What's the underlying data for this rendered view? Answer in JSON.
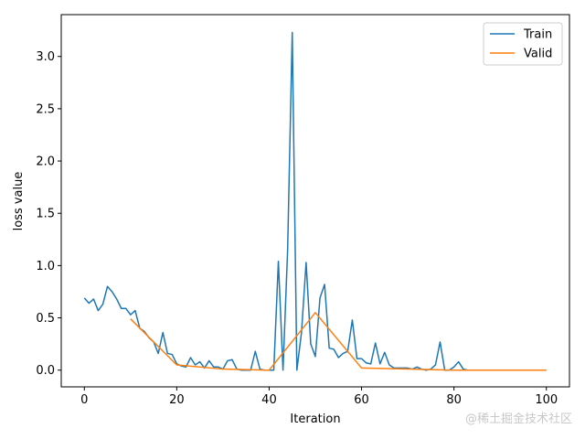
{
  "chart_data": {
    "type": "line",
    "title": "",
    "xlabel": "Iteration",
    "ylabel": "loss value",
    "xlim": [
      -5,
      105
    ],
    "ylim": [
      -0.16,
      3.4
    ],
    "xticks": [
      0,
      20,
      40,
      60,
      80,
      100
    ],
    "yticks": [
      0.0,
      0.5,
      1.0,
      1.5,
      2.0,
      2.5,
      3.0
    ],
    "grid": false,
    "legend_position": "top-right",
    "series": [
      {
        "name": "Train",
        "color": "#1f77b4",
        "x": [
          0,
          1,
          2,
          3,
          4,
          5,
          6,
          7,
          8,
          9,
          10,
          11,
          12,
          13,
          14,
          15,
          16,
          17,
          18,
          19,
          20,
          21,
          22,
          23,
          24,
          25,
          26,
          27,
          28,
          29,
          30,
          31,
          32,
          33,
          34,
          35,
          36,
          37,
          38,
          39,
          40,
          41,
          42,
          43,
          44,
          45,
          46,
          47,
          48,
          49,
          50,
          51,
          52,
          53,
          54,
          55,
          56,
          57,
          58,
          59,
          60,
          61,
          62,
          63,
          64,
          65,
          66,
          67,
          68,
          69,
          70,
          71,
          72,
          73,
          74,
          75,
          76,
          77,
          78,
          79,
          80,
          81,
          82,
          83,
          84,
          85,
          86,
          87,
          88,
          89,
          90,
          91,
          92,
          93,
          94,
          95,
          96,
          97,
          98,
          99,
          100
        ],
        "y": [
          0.69,
          0.64,
          0.68,
          0.57,
          0.63,
          0.8,
          0.75,
          0.68,
          0.59,
          0.59,
          0.53,
          0.57,
          0.4,
          0.37,
          0.31,
          0.27,
          0.16,
          0.36,
          0.16,
          0.15,
          0.06,
          0.04,
          0.03,
          0.12,
          0.05,
          0.08,
          0.02,
          0.09,
          0.03,
          0.03,
          0.01,
          0.09,
          0.1,
          0.01,
          0.0,
          0.0,
          0.0,
          0.18,
          0.01,
          0.0,
          0.0,
          0.0,
          1.04,
          0.0,
          1.15,
          3.23,
          0.0,
          0.36,
          1.03,
          0.25,
          0.13,
          0.69,
          0.82,
          0.21,
          0.2,
          0.12,
          0.16,
          0.18,
          0.48,
          0.11,
          0.11,
          0.07,
          0.06,
          0.26,
          0.06,
          0.17,
          0.05,
          0.02,
          0.02,
          0.02,
          0.02,
          0.01,
          0.03,
          0.01,
          0.0,
          0.01,
          0.05,
          0.27,
          0.0,
          0.0,
          0.03,
          0.08,
          0.01,
          0.0,
          0.0,
          0.0,
          0.0,
          0.0,
          0.0,
          0.0,
          0.0,
          0.0,
          0.0,
          0.0,
          0.0,
          0.0,
          0.0,
          0.0,
          0.0,
          0.0,
          0.0
        ]
      },
      {
        "name": "Valid",
        "color": "#ff7f0e",
        "x": [
          10,
          20,
          30,
          40,
          50,
          60,
          70,
          80,
          90,
          100
        ],
        "y": [
          0.49,
          0.05,
          0.01,
          0.0,
          0.55,
          0.02,
          0.01,
          0.0,
          0.0,
          0.0
        ]
      }
    ]
  },
  "watermark": "@稀土掘金技术社区"
}
